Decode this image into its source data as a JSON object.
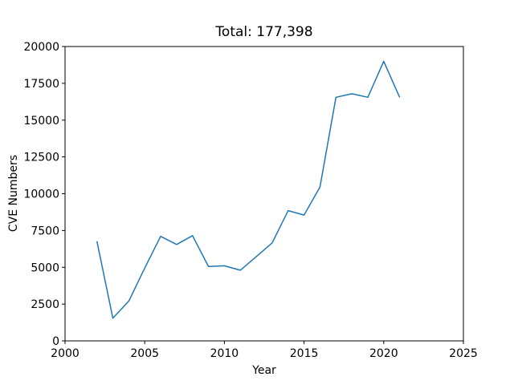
{
  "chart_data": {
    "type": "line",
    "title": "Total: 177,398",
    "total": 177398,
    "xlabel": "Year",
    "ylabel": "CVE Numbers",
    "x": [
      2002,
      2003,
      2004,
      2005,
      2006,
      2007,
      2008,
      2009,
      2010,
      2011,
      2012,
      2013,
      2014,
      2015,
      2016,
      2017,
      2018,
      2019,
      2020,
      2021
    ],
    "values": [
      6768,
      1550,
      2702,
      4950,
      7100,
      6550,
      7150,
      5050,
      5100,
      4800,
      5730,
      6660,
      8850,
      8550,
      10450,
      16550,
      16788,
      16550,
      19000,
      16550
    ],
    "xlim": [
      2000,
      2025
    ],
    "ylim": [
      0,
      20000
    ],
    "xticks": [
      2000,
      2005,
      2010,
      2015,
      2020,
      2025
    ],
    "yticks": [
      0,
      2500,
      5000,
      7500,
      10000,
      12500,
      15000,
      17500,
      20000
    ],
    "grid": false,
    "legend": "none",
    "line_color": "#1f77b4",
    "axis_color": "#000000",
    "background": "#ffffff"
  }
}
